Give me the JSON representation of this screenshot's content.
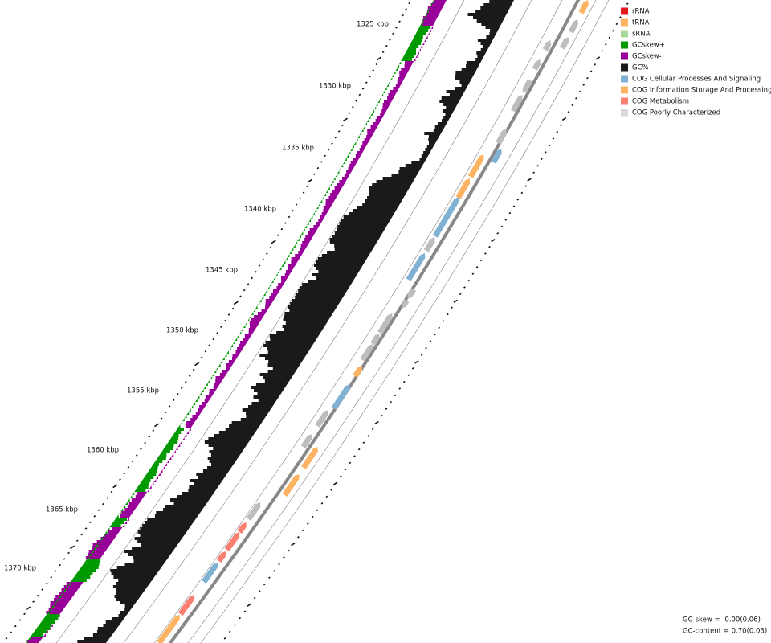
{
  "ruler": {
    "labels": [
      "1325 kbp",
      "1330 kbp",
      "1335 kbp",
      "1340 kbp",
      "1345 kbp",
      "1350 kbp",
      "1355 kbp",
      "1360 kbp",
      "1365 kbp",
      "1370 kbp"
    ]
  },
  "legend": [
    {
      "label": "rRNA",
      "color": "#e31a1c"
    },
    {
      "label": "tRNA",
      "color": "#fdb462"
    },
    {
      "label": "sRNA",
      "color": "#a6d99b"
    },
    {
      "label": "GCskew+",
      "color": "#009900"
    },
    {
      "label": "GCskew-",
      "color": "#990099"
    },
    {
      "label": "GC%",
      "color": "#1a1a1a"
    },
    {
      "label": "COG Cellular Processes And Signaling",
      "color": "#80b1d3"
    },
    {
      "label": "COG Information Storage And Processing",
      "color": "#fdb462"
    },
    {
      "label": "COG Metabolism",
      "color": "#fb8072"
    },
    {
      "label": "COG Poorly Characterized",
      "color": "#d9d9d9"
    }
  ],
  "stats": {
    "gc_skew": "GC-skew = -0.00(0.06)",
    "gc_content": "GC-content = 0.70(0.03)"
  }
}
